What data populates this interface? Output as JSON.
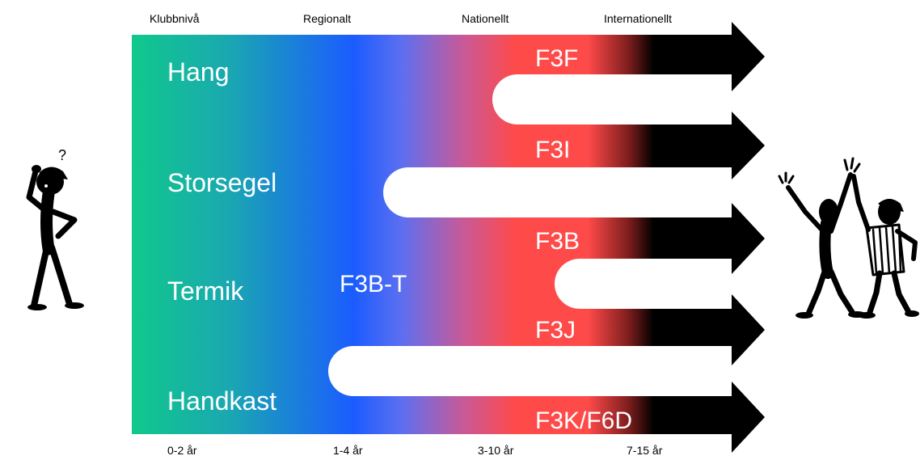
{
  "levels": {
    "club": "Klubbnivå",
    "regional": "Regionalt",
    "national": "Nationellt",
    "international": "Internationellt"
  },
  "durations": {
    "club": "0-2 år",
    "regional": "1-4 år",
    "national": "3-10 år",
    "international": "7-15 år"
  },
  "categories": {
    "hang": "Hang",
    "storsegel": "Storsegel",
    "termik": "Termik",
    "handkast": "Handkast"
  },
  "classes": {
    "f3f": "F3F",
    "f3i": "F3I",
    "f3b": "F3B",
    "f3j": "F3J",
    "f3k": "F3K/F6D",
    "f3bt": "F3B-T"
  },
  "colors": {
    "club": "#10c88c",
    "regional": "#1b5cff",
    "national": "#ff4a4a",
    "international": "#000000",
    "text_light": "#ffffff",
    "text_dark": "#000000"
  },
  "figures": {
    "left": "confused-person-icon",
    "right": "celebrating-people-icon"
  }
}
